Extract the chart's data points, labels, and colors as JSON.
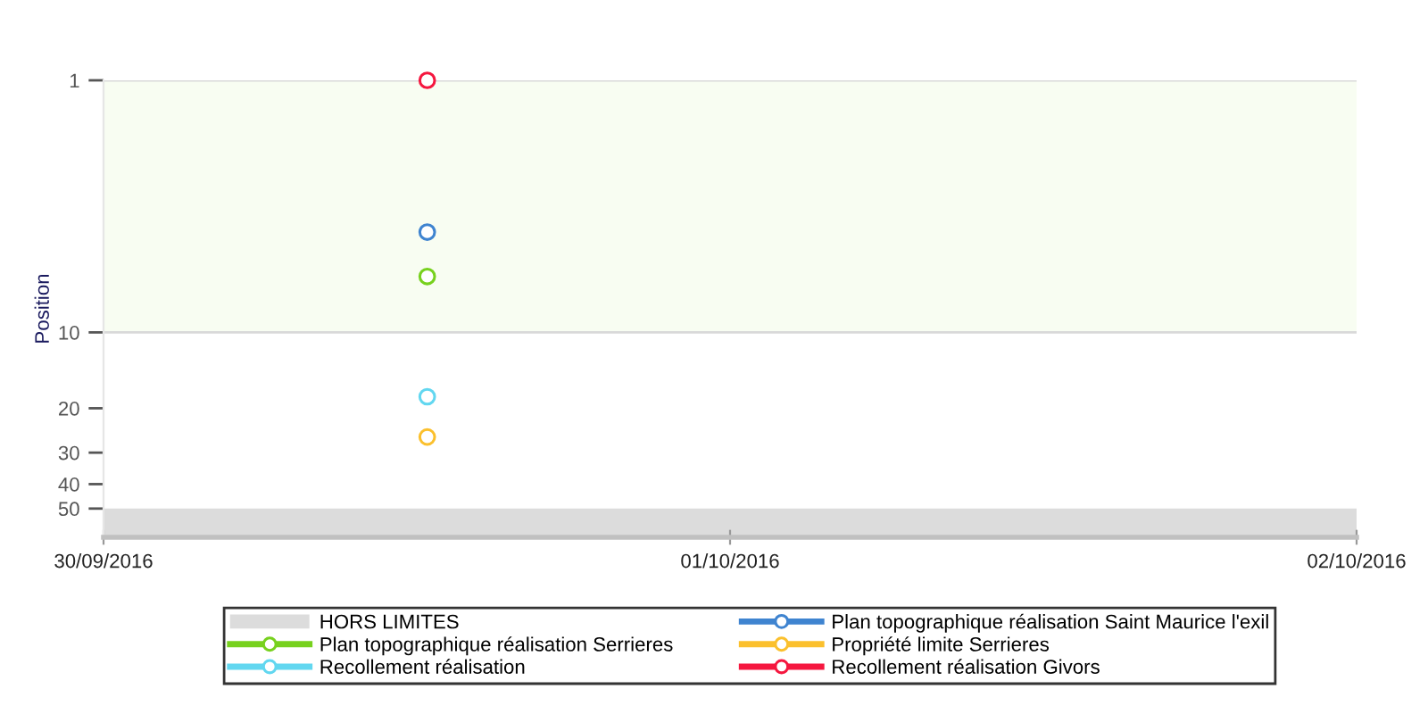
{
  "chart_data": {
    "type": "line",
    "ylabel": "Position",
    "x": [
      "2016-09-30T12:24"
    ],
    "series": [
      {
        "name": "Plan topographique réalisation Saint Maurice l'exil",
        "color": "#3f84d0",
        "values": [
          4
        ]
      },
      {
        "name": "Plan topographique réalisation Serrieres",
        "color": "#77d11e",
        "values": [
          6
        ]
      },
      {
        "name": "Propriété limite Serrieres",
        "color": "#fbc02d",
        "values": [
          26
        ]
      },
      {
        "name": "Recollement réalisation",
        "color": "#62d7f0",
        "values": [
          18
        ]
      },
      {
        "name": "Recollement réalisation Givors",
        "color": "#f5173f",
        "values": [
          1
        ]
      }
    ],
    "bands": [
      {
        "axis": "y",
        "from": 1,
        "to": 10,
        "color": "#f8fdf2"
      },
      {
        "axis": "y",
        "from": 50,
        "to": 65,
        "label": "HORS LIMITES",
        "color": "#dcdcdc"
      }
    ],
    "log": "y",
    "ylim": [
      65,
      1
    ],
    "yticks": [
      1,
      10,
      20,
      30,
      40,
      50
    ],
    "xlim": [
      "2016-09-30",
      "2016-10-02"
    ],
    "xticks": [
      {
        "value": "2016-09-30",
        "label": "30/09/2016"
      },
      {
        "value": "2016-10-01",
        "label": "01/10/2016"
      },
      {
        "value": "2016-10-02",
        "label": "02/10/2016"
      }
    ],
    "marker": "circle",
    "line_style": "solid",
    "legend": "bottom"
  }
}
